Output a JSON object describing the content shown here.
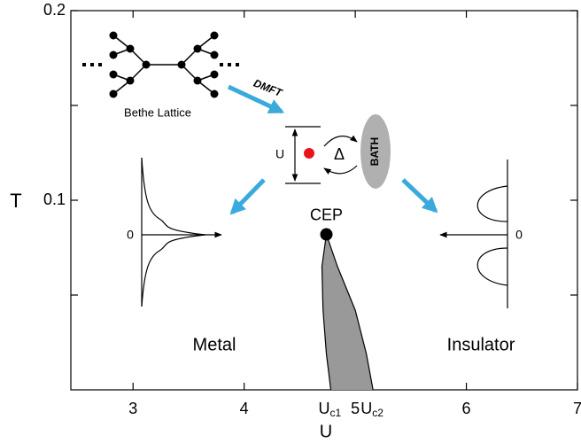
{
  "chart_data": {
    "type": "phase_diagram",
    "x_label": "U",
    "y_label": "T",
    "xlim": [
      2.44,
      7
    ],
    "ylim": [
      0,
      0.2
    ],
    "xticks": [
      3,
      4,
      5,
      6,
      7
    ],
    "yticks": [
      0.1,
      0.2
    ],
    "yminor_ticks": [
      0.05,
      0.15
    ],
    "critical_point": {
      "label": "CEP",
      "x": 4.74,
      "y": 0.082
    },
    "coexistence": {
      "color": "#999999",
      "y": [
        0.082,
        0.065,
        0.042,
        0.019,
        0
      ],
      "left_x": [
        4.74,
        4.7,
        4.71,
        4.74,
        4.78
      ],
      "right_x": [
        4.74,
        4.84,
        5.0,
        5.1,
        5.16
      ]
    },
    "critical_U": [
      {
        "base": "U",
        "sub": "c1",
        "value": 4.78
      },
      {
        "base": "U",
        "sub": "c2",
        "value": 5.16
      }
    ],
    "phase_labels": [
      "Metal",
      "Insulator"
    ],
    "inset": {
      "lattice_label": "Bethe Lattice",
      "arrow_label": "DMFT",
      "interaction_label": "U",
      "hybridization_label": "Δ",
      "bath_label": "BATH",
      "zero_labels": [
        "0",
        "0"
      ]
    }
  }
}
